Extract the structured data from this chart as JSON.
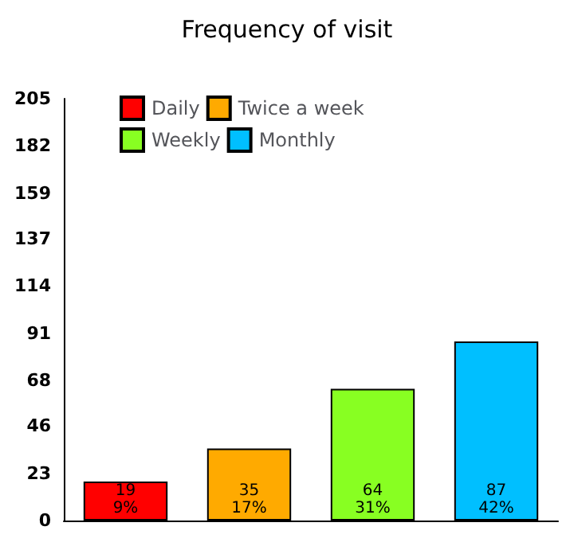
{
  "chart_data": {
    "type": "bar",
    "title": "Frequency of visit",
    "categories": [
      null,
      null,
      null,
      null
    ],
    "series": [
      {
        "name": "Daily",
        "color": "#ff0000",
        "values": [
          19,
          null,
          null,
          null
        ],
        "value_labels": [
          "19\n9%",
          null,
          null,
          null
        ]
      },
      {
        "name": "Twice a week",
        "color": "#ffaa00",
        "values": [
          null,
          35,
          null,
          null
        ],
        "value_labels": [
          null,
          "35\n17%",
          null,
          null
        ]
      },
      {
        "name": "Weekly",
        "color": "#88ff22",
        "values": [
          null,
          null,
          64,
          null
        ],
        "value_labels": [
          null,
          null,
          "64\n31%",
          null
        ]
      },
      {
        "name": "Monthly",
        "color": "#00bfff",
        "values": [
          null,
          null,
          null,
          87
        ],
        "value_labels": [
          null,
          null,
          null,
          "87\n42%"
        ]
      }
    ],
    "ylim": [
      0,
      205
    ],
    "yticks": [
      0,
      23,
      46,
      68,
      91,
      114,
      137,
      159,
      182,
      205
    ],
    "grid": false,
    "legend": "top left"
  }
}
